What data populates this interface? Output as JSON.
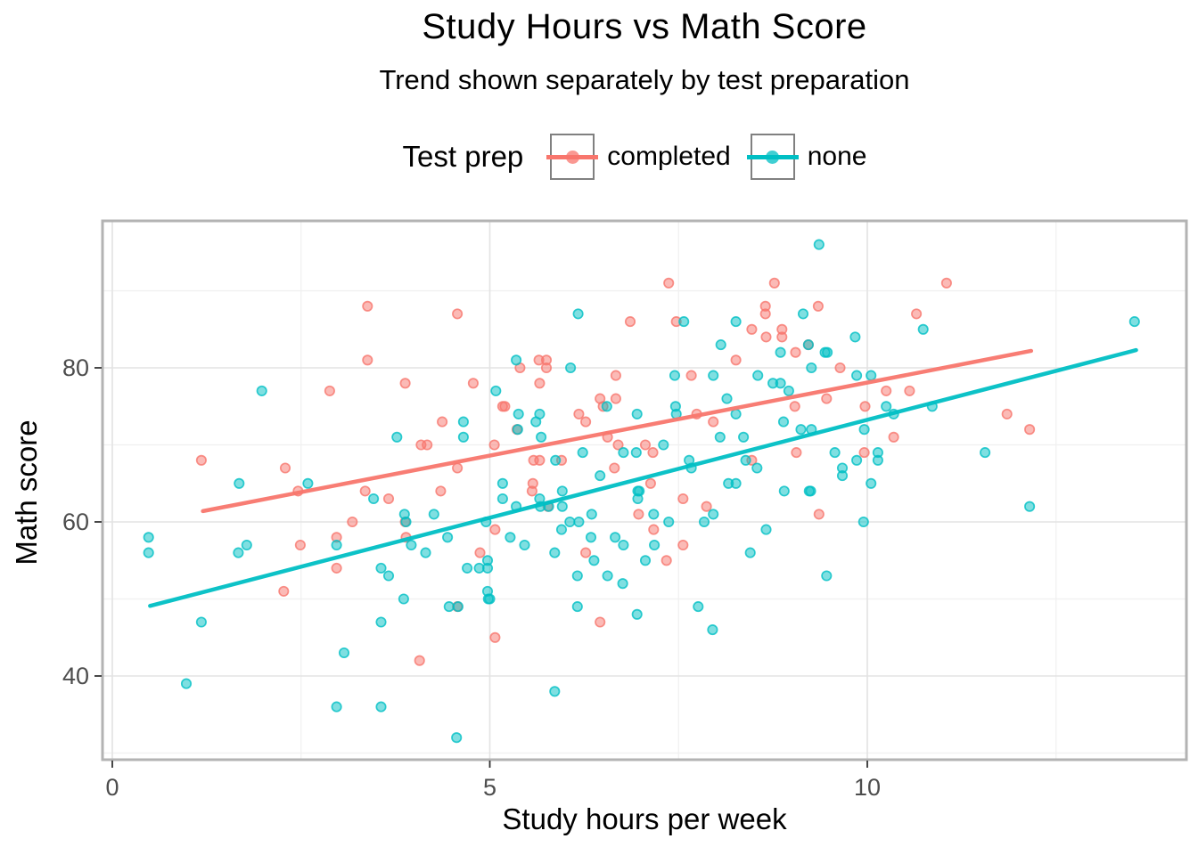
{
  "chart_data": {
    "type": "scatter",
    "title": "Study Hours vs Math Score",
    "subtitle": "Trend shown separately by test preparation",
    "xlabel": "Study hours per week",
    "ylabel": "Math score",
    "grid": true,
    "legend": {
      "title": "Test prep",
      "position": "top",
      "entries": [
        {
          "label": "completed",
          "color": "#F8766D"
        },
        {
          "label": "none",
          "color": "#00BFC4"
        }
      ]
    },
    "x_ticks": [
      0,
      5,
      10
    ],
    "x_minor_ticks": [
      2.5,
      7.5,
      12.5
    ],
    "y_ticks": [
      40,
      60,
      80
    ],
    "y_minor_ticks": [
      30,
      50,
      70,
      90
    ],
    "xlim": [
      -0.15,
      14.25
    ],
    "ylim": [
      29,
      99.2
    ],
    "colors": {
      "completed": "#F8766D",
      "none": "#00BFC4",
      "grid_major": "#E3E3E3",
      "grid_minor": "#F0F0F0",
      "panel_border": "#B3B3B3",
      "tick_text": "#4D4D4D"
    },
    "series": [
      {
        "name": "completed",
        "color": "#F8766D",
        "points": [
          [
            1.18,
            68
          ],
          [
            2.27,
            51
          ],
          [
            2.29,
            67
          ],
          [
            2.46,
            64
          ],
          [
            2.49,
            57
          ],
          [
            2.88,
            77
          ],
          [
            2.97,
            58
          ],
          [
            2.97,
            54
          ],
          [
            3.18,
            60
          ],
          [
            3.35,
            64
          ],
          [
            3.38,
            88
          ],
          [
            3.38,
            81
          ],
          [
            3.66,
            63
          ],
          [
            3.88,
            78
          ],
          [
            3.88,
            60
          ],
          [
            3.89,
            58
          ],
          [
            4.07,
            42
          ],
          [
            4.09,
            70
          ],
          [
            4.17,
            70
          ],
          [
            4.35,
            64
          ],
          [
            4.37,
            73
          ],
          [
            4.57,
            87
          ],
          [
            4.57,
            67
          ],
          [
            4.57,
            49
          ],
          [
            4.78,
            78
          ],
          [
            4.87,
            56
          ],
          [
            5.06,
            70
          ],
          [
            5.07,
            59
          ],
          [
            5.07,
            45
          ],
          [
            5.17,
            75
          ],
          [
            5.2,
            75
          ],
          [
            5.36,
            72
          ],
          [
            5.4,
            80
          ],
          [
            5.56,
            64
          ],
          [
            5.57,
            65
          ],
          [
            5.58,
            68
          ],
          [
            5.65,
            81
          ],
          [
            5.66,
            78
          ],
          [
            5.66,
            68
          ],
          [
            5.75,
            81
          ],
          [
            5.75,
            80
          ],
          [
            5.77,
            62
          ],
          [
            5.95,
            68
          ],
          [
            6.18,
            74
          ],
          [
            6.27,
            73
          ],
          [
            6.27,
            56
          ],
          [
            6.46,
            76
          ],
          [
            6.46,
            47
          ],
          [
            6.5,
            75
          ],
          [
            6.56,
            71
          ],
          [
            6.65,
            67
          ],
          [
            6.67,
            79
          ],
          [
            6.67,
            76
          ],
          [
            6.7,
            70
          ],
          [
            6.86,
            86
          ],
          [
            6.97,
            61
          ],
          [
            7.06,
            70
          ],
          [
            7.13,
            65
          ],
          [
            7.16,
            69
          ],
          [
            7.17,
            59
          ],
          [
            7.34,
            55
          ],
          [
            7.37,
            91
          ],
          [
            7.47,
            86
          ],
          [
            7.56,
            63
          ],
          [
            7.56,
            57
          ],
          [
            7.67,
            79
          ],
          [
            7.74,
            74
          ],
          [
            7.87,
            62
          ],
          [
            7.96,
            73
          ],
          [
            8.26,
            81
          ],
          [
            8.47,
            68
          ],
          [
            8.47,
            85
          ],
          [
            8.65,
            88
          ],
          [
            8.65,
            87
          ],
          [
            8.66,
            84
          ],
          [
            8.77,
            91
          ],
          [
            8.87,
            85
          ],
          [
            8.87,
            84
          ],
          [
            9.04,
            75
          ],
          [
            9.05,
            82
          ],
          [
            9.06,
            69
          ],
          [
            9.22,
            83
          ],
          [
            9.35,
            88
          ],
          [
            9.36,
            61
          ],
          [
            9.46,
            76
          ],
          [
            9.64,
            80
          ],
          [
            9.96,
            69
          ],
          [
            9.97,
            75
          ],
          [
            10.25,
            77
          ],
          [
            10.35,
            71
          ],
          [
            10.56,
            77
          ],
          [
            10.65,
            87
          ],
          [
            11.05,
            91
          ],
          [
            11.85,
            74
          ],
          [
            12.15,
            72
          ]
        ]
      },
      {
        "name": "none",
        "color": "#00BFC4",
        "points": [
          [
            0.48,
            58
          ],
          [
            0.48,
            56
          ],
          [
            0.98,
            39
          ],
          [
            1.18,
            47
          ],
          [
            1.67,
            56
          ],
          [
            1.68,
            65
          ],
          [
            1.78,
            57
          ],
          [
            1.98,
            77
          ],
          [
            2.59,
            65
          ],
          [
            2.97,
            57
          ],
          [
            2.97,
            36
          ],
          [
            3.07,
            43
          ],
          [
            3.46,
            63
          ],
          [
            3.56,
            54
          ],
          [
            3.56,
            47
          ],
          [
            3.56,
            36
          ],
          [
            3.66,
            53
          ],
          [
            3.77,
            71
          ],
          [
            3.86,
            50
          ],
          [
            3.87,
            61
          ],
          [
            3.89,
            60
          ],
          [
            3.96,
            57
          ],
          [
            4.15,
            56
          ],
          [
            4.26,
            61
          ],
          [
            4.44,
            58
          ],
          [
            4.46,
            49
          ],
          [
            4.56,
            32
          ],
          [
            4.58,
            49
          ],
          [
            4.65,
            73
          ],
          [
            4.65,
            71
          ],
          [
            4.7,
            54
          ],
          [
            4.86,
            54
          ],
          [
            4.95,
            60
          ],
          [
            4.97,
            55
          ],
          [
            4.97,
            54
          ],
          [
            4.97,
            51
          ],
          [
            4.98,
            50
          ],
          [
            5.0,
            50
          ],
          [
            5.08,
            77
          ],
          [
            5.17,
            65
          ],
          [
            5.17,
            63
          ],
          [
            5.27,
            58
          ],
          [
            5.35,
            81
          ],
          [
            5.35,
            62
          ],
          [
            5.37,
            72
          ],
          [
            5.38,
            74
          ],
          [
            5.46,
            57
          ],
          [
            5.61,
            73
          ],
          [
            5.66,
            74
          ],
          [
            5.66,
            63
          ],
          [
            5.67,
            62
          ],
          [
            5.68,
            71
          ],
          [
            5.78,
            62
          ],
          [
            5.86,
            56
          ],
          [
            5.86,
            38
          ],
          [
            5.87,
            68
          ],
          [
            5.95,
            59
          ],
          [
            5.96,
            64
          ],
          [
            5.96,
            62
          ],
          [
            6.06,
            60
          ],
          [
            6.07,
            80
          ],
          [
            6.16,
            53
          ],
          [
            6.16,
            49
          ],
          [
            6.17,
            87
          ],
          [
            6.18,
            60
          ],
          [
            6.23,
            69
          ],
          [
            6.34,
            58
          ],
          [
            6.35,
            61
          ],
          [
            6.38,
            55
          ],
          [
            6.46,
            66
          ],
          [
            6.55,
            75
          ],
          [
            6.56,
            53
          ],
          [
            6.66,
            58
          ],
          [
            6.76,
            52
          ],
          [
            6.77,
            69
          ],
          [
            6.77,
            57
          ],
          [
            6.94,
            69
          ],
          [
            6.95,
            48
          ],
          [
            6.95,
            74
          ],
          [
            6.96,
            63
          ],
          [
            6.96,
            64
          ],
          [
            6.98,
            64
          ],
          [
            7.06,
            55
          ],
          [
            7.17,
            61
          ],
          [
            7.18,
            57
          ],
          [
            7.3,
            70
          ],
          [
            7.37,
            60
          ],
          [
            7.45,
            79
          ],
          [
            7.46,
            75
          ],
          [
            7.47,
            74
          ],
          [
            7.57,
            86
          ],
          [
            7.64,
            68
          ],
          [
            7.67,
            67
          ],
          [
            7.76,
            49
          ],
          [
            7.84,
            60
          ],
          [
            7.95,
            46
          ],
          [
            7.96,
            61
          ],
          [
            7.96,
            79
          ],
          [
            8.05,
            71
          ],
          [
            8.06,
            83
          ],
          [
            8.14,
            76
          ],
          [
            8.16,
            65
          ],
          [
            8.26,
            86
          ],
          [
            8.26,
            74
          ],
          [
            8.26,
            65
          ],
          [
            8.36,
            71
          ],
          [
            8.39,
            68
          ],
          [
            8.45,
            56
          ],
          [
            8.54,
            67
          ],
          [
            8.55,
            79
          ],
          [
            8.66,
            59
          ],
          [
            8.75,
            78
          ],
          [
            8.85,
            78
          ],
          [
            8.85,
            82
          ],
          [
            8.89,
            73
          ],
          [
            8.9,
            64
          ],
          [
            8.96,
            77
          ],
          [
            9.12,
            72
          ],
          [
            9.15,
            87
          ],
          [
            9.22,
            83
          ],
          [
            9.23,
            64
          ],
          [
            9.25,
            64
          ],
          [
            9.26,
            80
          ],
          [
            9.26,
            72
          ],
          [
            9.36,
            96
          ],
          [
            9.44,
            82
          ],
          [
            9.47,
            82
          ],
          [
            9.46,
            53
          ],
          [
            9.57,
            69
          ],
          [
            9.67,
            67
          ],
          [
            9.67,
            66
          ],
          [
            9.84,
            84
          ],
          [
            9.86,
            79
          ],
          [
            9.86,
            68
          ],
          [
            9.95,
            60
          ],
          [
            9.96,
            72
          ],
          [
            10.05,
            79
          ],
          [
            10.05,
            65
          ],
          [
            10.14,
            69
          ],
          [
            10.14,
            68
          ],
          [
            10.25,
            75
          ],
          [
            10.35,
            74
          ],
          [
            10.74,
            85
          ],
          [
            10.86,
            75
          ],
          [
            11.56,
            69
          ],
          [
            12.15,
            62
          ],
          [
            13.54,
            86
          ]
        ]
      }
    ],
    "trend_lines": [
      {
        "name": "completed",
        "color": "#F8766D",
        "x1": 1.2,
        "y1": 61.4,
        "x2": 12.17,
        "y2": 82.2
      },
      {
        "name": "none",
        "color": "#00BFC4",
        "x1": 0.5,
        "y1": 49.1,
        "x2": 13.56,
        "y2": 82.3
      }
    ]
  }
}
